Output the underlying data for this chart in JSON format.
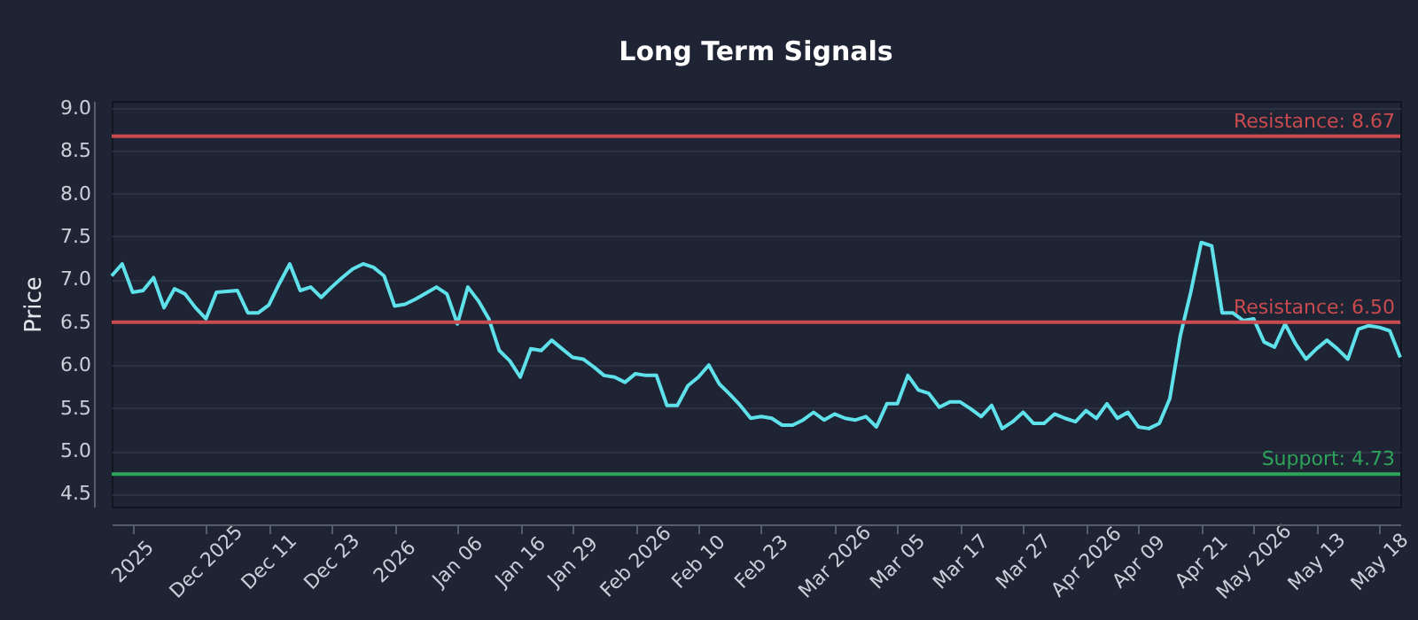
{
  "chart_data": {
    "type": "line",
    "title": "Long Term Signals",
    "ylabel": "Price",
    "categories": [
      null,
      null,
      "2025",
      null,
      null,
      null,
      null,
      null,
      null,
      "Dec 2025",
      null,
      null,
      null,
      null,
      null,
      "Dec 11",
      null,
      null,
      null,
      null,
      null,
      "Dec 23",
      null,
      null,
      null,
      null,
      null,
      "2026",
      null,
      null,
      null,
      null,
      null,
      "Jan 06",
      null,
      null,
      null,
      null,
      null,
      "Jan 16",
      null,
      null,
      null,
      null,
      "Jan 29",
      null,
      null,
      null,
      null,
      null,
      "Feb 2026",
      null,
      null,
      null,
      null,
      null,
      "Feb 10",
      null,
      null,
      null,
      null,
      null,
      "Feb 23",
      null,
      null,
      null,
      null,
      null,
      null,
      "Mar 2026",
      null,
      null,
      null,
      null,
      null,
      "Mar 05",
      null,
      null,
      null,
      null,
      null,
      "Mar 17",
      null,
      null,
      null,
      null,
      null,
      "Mar 27",
      null,
      null,
      null,
      null,
      null,
      "Apr 2026",
      null,
      null,
      null,
      null,
      "Apr 09",
      null,
      null,
      null,
      null,
      null,
      "Apr 21",
      null,
      null,
      null,
      null,
      "May 2026",
      null,
      null,
      null,
      null,
      null,
      "May 13",
      null,
      null,
      null,
      null,
      null,
      "May 18",
      null,
      null
    ],
    "series": [
      {
        "color": "#5ee1ea",
        "values": [
          7.04,
          7.18,
          6.85,
          6.87,
          7.02,
          6.67,
          6.89,
          6.83,
          6.67,
          6.54,
          6.85,
          6.86,
          6.87,
          6.61,
          6.61,
          6.7,
          6.95,
          7.18,
          6.87,
          6.91,
          6.79,
          6.91,
          7.02,
          7.12,
          7.18,
          7.14,
          7.04,
          6.69,
          6.71,
          6.77,
          6.84,
          6.91,
          6.83,
          6.48,
          6.91,
          6.75,
          6.54,
          6.17,
          6.05,
          5.86,
          6.19,
          6.17,
          6.29,
          6.19,
          6.09,
          6.07,
          5.98,
          5.88,
          5.86,
          5.8,
          5.9,
          5.88,
          5.88,
          5.53,
          5.53,
          5.76,
          5.86,
          6.0,
          5.78,
          5.66,
          5.53,
          5.38,
          5.4,
          5.38,
          5.3,
          5.3,
          5.36,
          5.45,
          5.36,
          5.43,
          5.38,
          5.36,
          5.4,
          5.28,
          5.55,
          5.55,
          5.88,
          5.71,
          5.67,
          5.51,
          5.57,
          5.57,
          5.49,
          5.4,
          5.53,
          5.26,
          5.34,
          5.45,
          5.32,
          5.32,
          5.43,
          5.38,
          5.34,
          5.47,
          5.38,
          5.55,
          5.38,
          5.45,
          5.28,
          5.26,
          5.32,
          5.61,
          6.34,
          6.85,
          7.43,
          7.39,
          6.61,
          6.61,
          6.52,
          6.54,
          6.27,
          6.21,
          6.48,
          6.25,
          6.07,
          6.19,
          6.29,
          6.19,
          6.07,
          6.42,
          6.46,
          6.44,
          6.4,
          6.09
        ]
      }
    ],
    "ylim": [
      4.35,
      9.08
    ],
    "yticks": [
      4.5,
      {
        "value": 5,
        "label": "5.0"
      },
      5.5,
      {
        "value": 6,
        "label": "6.0"
      },
      6.5,
      {
        "value": 7,
        "label": "7.0"
      },
      7.5,
      {
        "value": 8,
        "label": "8.0"
      },
      8.5,
      {
        "value": 9,
        "label": "9.0"
      }
    ],
    "grid": "y",
    "ref_lines": [
      {
        "axis": "y",
        "value": 8.67,
        "label": "Resistance: 8.67",
        "color": "#c94b4f"
      },
      {
        "axis": "y",
        "value": 6.5,
        "label": "Resistance: 6.50",
        "color": "#c94b4f"
      },
      {
        "axis": "y",
        "value": 4.73,
        "label": "Support: 4.73",
        "color": "#2ea45a"
      }
    ]
  }
}
